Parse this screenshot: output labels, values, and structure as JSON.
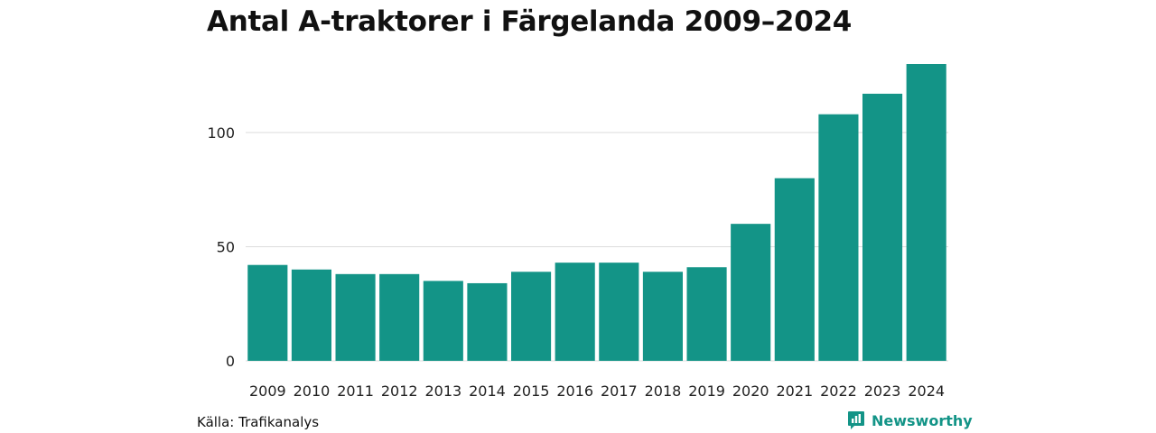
{
  "header": {
    "title": "Antal A-traktorer i Färgelanda 2009–2024"
  },
  "footer": {
    "source": "Källa: Trafikanalys",
    "brand": "Newsworthy"
  },
  "colors": {
    "bar": "#139487",
    "grid": "#dddddd",
    "brand": "#139487"
  },
  "icons": {
    "brand_logo": "bar-chart-speech-bubble-icon"
  },
  "chart_data": {
    "type": "bar",
    "title": "Antal A-traktorer i Färgelanda 2009–2024",
    "xlabel": "",
    "ylabel": "",
    "categories": [
      "2009",
      "2010",
      "2011",
      "2012",
      "2013",
      "2014",
      "2015",
      "2016",
      "2017",
      "2018",
      "2019",
      "2020",
      "2021",
      "2022",
      "2023",
      "2024"
    ],
    "values": [
      42,
      40,
      38,
      38,
      35,
      34,
      39,
      43,
      43,
      39,
      41,
      60,
      80,
      108,
      117,
      130
    ],
    "yticks": [
      0,
      50,
      100
    ],
    "ylim": [
      0,
      130
    ],
    "grid": true,
    "legend": "none"
  }
}
